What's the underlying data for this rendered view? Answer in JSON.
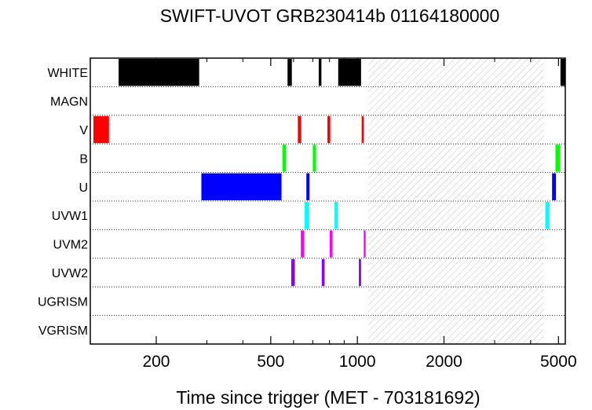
{
  "chart_data": {
    "type": "timeline",
    "title": "SWIFT-UVOT GRB230414b 01164180000",
    "xlabel": "Time since trigger (MET - 703181692)",
    "ylabel": "",
    "x_scale": "log",
    "xlim": [
      118,
      5280
    ],
    "x_ticks": [
      {
        "value": 200,
        "label": "200"
      },
      {
        "value": 500,
        "label": "500"
      },
      {
        "value": 1000,
        "label": "1000"
      },
      {
        "value": 2000,
        "label": "2000"
      },
      {
        "value": 5000,
        "label": "5000"
      }
    ],
    "filters": [
      "WHITE",
      "MAGN",
      "V",
      "B",
      "U",
      "UVW1",
      "UVM2",
      "UVW2",
      "UGRISM",
      "VGRISM"
    ],
    "filter_colors": {
      "WHITE": "#000000",
      "MAGN": "#000000",
      "V": "#ff0000",
      "B": "#00ff00",
      "U": "#0000ff",
      "UVW1": "#00ffff",
      "UVM2": "#ff00ff",
      "UVW2": "#8800ff",
      "UGRISM": "#000000",
      "VGRISM": "#000000"
    },
    "gap_band": [
      1090,
      4450
    ],
    "exposures": [
      {
        "filter": "WHITE",
        "start": 148,
        "end": 282
      },
      {
        "filter": "WHITE",
        "start": 572,
        "end": 592
      },
      {
        "filter": "WHITE",
        "start": 734,
        "end": 750
      },
      {
        "filter": "WHITE",
        "start": 858,
        "end": 1030
      },
      {
        "filter": "WHITE",
        "start": 5080,
        "end": 5280
      },
      {
        "filter": "V",
        "start": 121,
        "end": 137
      },
      {
        "filter": "V",
        "start": 621,
        "end": 638
      },
      {
        "filter": "V",
        "start": 787,
        "end": 805
      },
      {
        "filter": "V",
        "start": 1035,
        "end": 1052
      },
      {
        "filter": "B",
        "start": 549,
        "end": 565
      },
      {
        "filter": "B",
        "start": 700,
        "end": 718
      },
      {
        "filter": "B",
        "start": 4880,
        "end": 5050
      },
      {
        "filter": "U",
        "start": 287,
        "end": 545
      },
      {
        "filter": "U",
        "start": 665,
        "end": 682
      },
      {
        "filter": "U",
        "start": 4750,
        "end": 4900
      },
      {
        "filter": "UVW1",
        "start": 655,
        "end": 678
      },
      {
        "filter": "UVW1",
        "start": 833,
        "end": 855
      },
      {
        "filter": "UVW1",
        "start": 4500,
        "end": 4650
      },
      {
        "filter": "UVM2",
        "start": 636,
        "end": 652
      },
      {
        "filter": "UVM2",
        "start": 801,
        "end": 818
      },
      {
        "filter": "UVM2",
        "start": 1052,
        "end": 1068
      },
      {
        "filter": "UVW2",
        "start": 589,
        "end": 606
      },
      {
        "filter": "UVW2",
        "start": 752,
        "end": 769
      },
      {
        "filter": "UVW2",
        "start": 1012,
        "end": 1030
      }
    ]
  }
}
